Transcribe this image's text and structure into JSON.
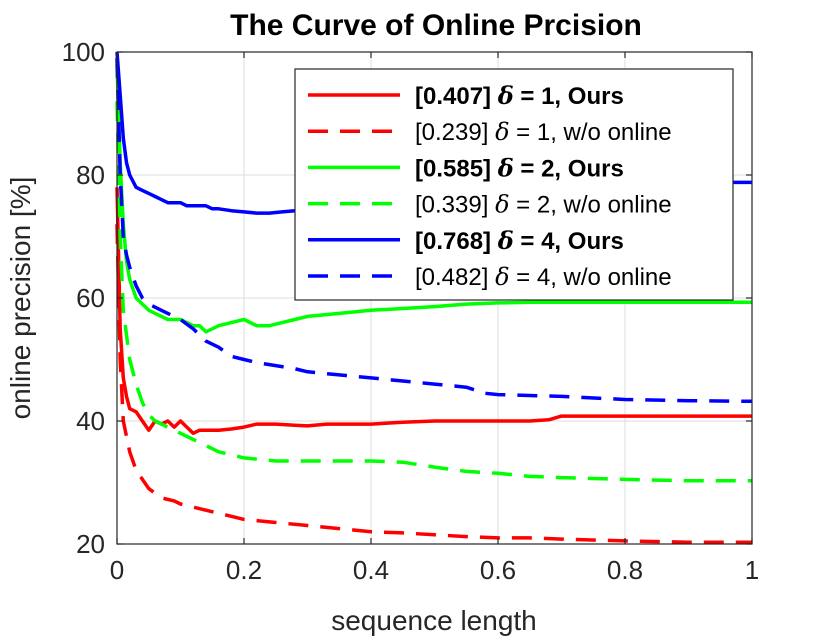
{
  "chart_data": {
    "type": "line",
    "title": "The Curve of Online Prcision",
    "xlabel": "sequence length",
    "ylabel": "online precision [%]",
    "xlim": [
      0,
      1
    ],
    "ylim": [
      20,
      100
    ],
    "xticks": [
      0,
      0.2,
      0.4,
      0.6,
      0.8,
      1
    ],
    "xtick_labels": [
      "0",
      "0.2",
      "0.4",
      "0.6",
      "0.8",
      "1"
    ],
    "yticks": [
      20,
      40,
      60,
      80,
      100
    ],
    "ytick_labels": [
      "20",
      "40",
      "60",
      "80",
      "100"
    ],
    "grid": true,
    "legend_position": "top-right",
    "series": [
      {
        "name": "[0.407]  δ = 1, Ours",
        "score": "[0.407]",
        "label_rest": "= 1, Ours",
        "bold": true,
        "color": "#ff0000",
        "dash": "solid",
        "x": [
          0,
          0.005,
          0.01,
          0.015,
          0.02,
          0.03,
          0.04,
          0.05,
          0.06,
          0.07,
          0.08,
          0.09,
          0.1,
          0.11,
          0.12,
          0.13,
          0.14,
          0.15,
          0.16,
          0.18,
          0.2,
          0.22,
          0.25,
          0.28,
          0.3,
          0.33,
          0.35,
          0.38,
          0.4,
          0.45,
          0.5,
          0.55,
          0.6,
          0.65,
          0.68,
          0.7,
          0.8,
          0.9,
          1.0
        ],
        "y": [
          78,
          55,
          47,
          44,
          42,
          41.5,
          40,
          38.5,
          40,
          39.5,
          40,
          39,
          40,
          39,
          38,
          38.5,
          38.5,
          38.5,
          38.5,
          38.7,
          39,
          39.5,
          39.5,
          39.3,
          39.2,
          39.5,
          39.5,
          39.5,
          39.5,
          39.8,
          40,
          40,
          40,
          40,
          40.2,
          40.8,
          40.8,
          40.8,
          40.8
        ]
      },
      {
        "name": "[0.239]  δ = 1, w/o online",
        "score": "[0.239]",
        "label_rest": "= 1, w/o online",
        "bold": false,
        "color": "#ff0000",
        "dash": "dashed",
        "x": [
          0,
          0.005,
          0.01,
          0.02,
          0.03,
          0.04,
          0.05,
          0.07,
          0.09,
          0.1,
          0.12,
          0.14,
          0.16,
          0.18,
          0.2,
          0.25,
          0.3,
          0.35,
          0.4,
          0.45,
          0.5,
          0.55,
          0.6,
          0.65,
          0.7,
          0.8,
          0.9,
          1.0
        ],
        "y": [
          72,
          50,
          40,
          35,
          32,
          30.5,
          29,
          27.5,
          27,
          26.5,
          26,
          25.5,
          25,
          24.5,
          24,
          23.5,
          23,
          22.5,
          22,
          21.8,
          21.5,
          21.2,
          21,
          21,
          20.8,
          20.5,
          20.3,
          20.3
        ]
      },
      {
        "name": "[0.585]  δ = 2, Ours",
        "score": "[0.585]",
        "label_rest": "= 2, Ours",
        "bold": true,
        "color": "#00ff00",
        "dash": "solid",
        "x": [
          0,
          0.005,
          0.01,
          0.015,
          0.02,
          0.03,
          0.04,
          0.05,
          0.06,
          0.07,
          0.08,
          0.09,
          0.1,
          0.11,
          0.12,
          0.13,
          0.14,
          0.15,
          0.16,
          0.18,
          0.2,
          0.22,
          0.24,
          0.26,
          0.28,
          0.3,
          0.35,
          0.4,
          0.45,
          0.5,
          0.55,
          0.6,
          0.65,
          0.7,
          0.75,
          0.8,
          0.9,
          1.0
        ],
        "y": [
          98,
          82,
          72,
          66,
          63,
          60,
          59,
          58,
          57.5,
          57,
          56.5,
          56.5,
          56.5,
          56,
          55.5,
          55.5,
          54.5,
          55,
          55.5,
          56,
          56.5,
          55.5,
          55.5,
          56,
          56.5,
          57,
          57.5,
          58,
          58.3,
          58.6,
          59,
          59.2,
          59.3,
          59.3,
          59.3,
          59.3,
          59.3,
          59.3
        ]
      },
      {
        "name": "[0.339]  δ = 2, w/o online",
        "score": "[0.339]",
        "label_rest": "= 2, w/o online",
        "bold": false,
        "color": "#00ff00",
        "dash": "dashed",
        "x": [
          0,
          0.005,
          0.01,
          0.02,
          0.03,
          0.04,
          0.05,
          0.06,
          0.08,
          0.1,
          0.12,
          0.14,
          0.16,
          0.18,
          0.2,
          0.25,
          0.3,
          0.35,
          0.4,
          0.45,
          0.5,
          0.55,
          0.6,
          0.65,
          0.7,
          0.8,
          0.9,
          1.0
        ],
        "y": [
          92,
          70,
          58,
          50,
          46,
          43,
          41,
          40,
          39,
          38,
          37,
          36,
          35,
          34.5,
          34,
          33.5,
          33.5,
          33.5,
          33.5,
          33.3,
          32.5,
          31.8,
          31.5,
          31,
          30.8,
          30.5,
          30.3,
          30.3
        ]
      },
      {
        "name": "[0.768]  δ = 4, Ours",
        "score": "[0.768]",
        "label_rest": "= 4, Ours",
        "bold": true,
        "color": "#0000ff",
        "dash": "solid",
        "x": [
          0,
          0.005,
          0.01,
          0.015,
          0.02,
          0.03,
          0.04,
          0.05,
          0.06,
          0.07,
          0.08,
          0.09,
          0.1,
          0.11,
          0.12,
          0.13,
          0.14,
          0.15,
          0.16,
          0.18,
          0.2,
          0.22,
          0.24,
          0.26,
          0.28
        ],
        "y": [
          100,
          93,
          86,
          82,
          80,
          78,
          77.5,
          77,
          76.5,
          76,
          75.5,
          75.5,
          75.5,
          75,
          75,
          75,
          75,
          74.5,
          74.5,
          74.2,
          74,
          73.8,
          73.8,
          74,
          74.2
        ]
      },
      {
        "name": "[0.482]  δ = 4, w/o online",
        "score": "[0.482]",
        "label_rest": "= 4, w/o online",
        "bold": false,
        "color": "#0000ff",
        "dash": "dashed",
        "x": [
          0,
          0.005,
          0.01,
          0.015,
          0.02,
          0.03,
          0.04,
          0.05,
          0.06,
          0.07,
          0.08,
          0.09,
          0.1,
          0.12,
          0.14,
          0.16,
          0.18,
          0.2,
          0.22,
          0.25,
          0.28,
          0.3,
          0.35,
          0.4,
          0.45,
          0.5,
          0.55,
          0.58,
          0.6,
          0.7,
          0.8,
          0.9,
          1.0
        ],
        "y": [
          99,
          80,
          70,
          67,
          65,
          62,
          60,
          59,
          58.5,
          58,
          57.5,
          57,
          56.5,
          55,
          53,
          52,
          50.5,
          50,
          49.5,
          49,
          48.5,
          48,
          47.5,
          47,
          46.5,
          46,
          45.5,
          44.5,
          44.3,
          44,
          43.5,
          43.3,
          43.2
        ]
      }
    ],
    "extra_segments": [
      {
        "series_index": 4,
        "x": [
          0.9,
          1.0
        ],
        "y": [
          78.8,
          78.8
        ]
      }
    ]
  }
}
